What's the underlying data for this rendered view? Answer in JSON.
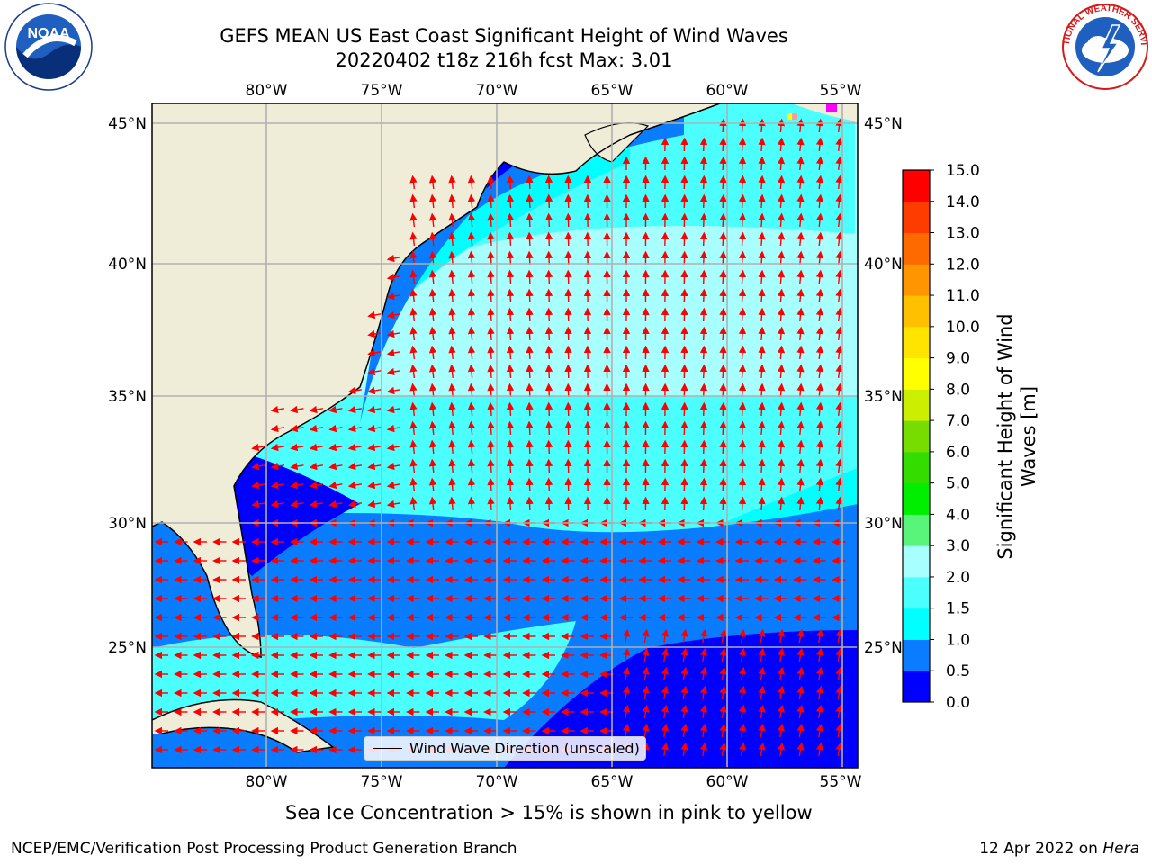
{
  "header": {
    "title_line1": "GEFS MEAN US East Coast Significant Height of Wind Waves",
    "title_line2": "20220402 t18z 216h fcst   Max: 3.01"
  },
  "logos": {
    "left": {
      "icon": "noaa-logo",
      "text": "NOAA"
    },
    "right": {
      "icon": "nws-logo",
      "text": "NATIONAL WEATHER SERVICE"
    }
  },
  "chart_data": {
    "type": "heatmap",
    "subtype": "map-filled-contour-with-vectors",
    "lon_ticks": [
      "80°W",
      "75°W",
      "70°W",
      "65°W",
      "60°W",
      "55°W"
    ],
    "lat_ticks": [
      "45°N",
      "40°N",
      "35°N",
      "30°N",
      "25°N"
    ],
    "lon_range": [
      -85,
      -54.5
    ],
    "lat_range": [
      20.5,
      46
    ],
    "grid": true,
    "vector_legend": "Wind Wave Direction (unscaled)",
    "vector_color": "#ff0000",
    "land_color": "#efedd8",
    "colorbar": {
      "label": "Significant Height of Wind Waves [m]",
      "tick_labels": [
        "0.0",
        "0.5",
        "1.0",
        "1.5",
        "2.0",
        "3.0",
        "4.0",
        "5.0",
        "6.0",
        "7.0",
        "8.0",
        "9.0",
        "10.0",
        "11.0",
        "12.0",
        "13.0",
        "14.0",
        "15.0"
      ],
      "colors": [
        "#0000ff",
        "#0a7cff",
        "#00ffff",
        "#4cffff",
        "#a8ffff",
        "#59f57a",
        "#00ee00",
        "#33dd00",
        "#77dd00",
        "#ccee00",
        "#ffff00",
        "#ffe400",
        "#ffc000",
        "#ff9500",
        "#ff6a00",
        "#ff3c00",
        "#ff0000"
      ]
    },
    "max_value": 3.01
  },
  "caption": "Sea Ice Concentration > 15% is shown in pink to yellow",
  "footer": {
    "left": "NCEP/EMC/Verification Post Processing Product Generation Branch",
    "right_date": "12 Apr 2022 on ",
    "right_host": "Hera"
  }
}
